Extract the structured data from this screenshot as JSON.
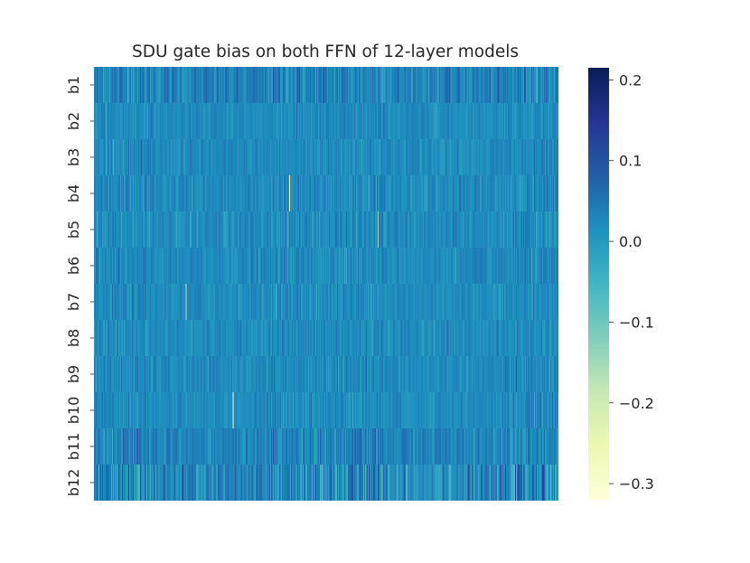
{
  "chart_data": {
    "type": "heatmap",
    "title": "SDU gate bias on both FFN of 12-layer models",
    "rows": [
      "b1",
      "b2",
      "b3",
      "b4",
      "b5",
      "b6",
      "b7",
      "b8",
      "b9",
      "b10",
      "b11",
      "b12"
    ],
    "columns_count": 512,
    "colormap": "YlGnBu",
    "value_range": [
      -0.32,
      0.215
    ],
    "typical_value": 0.02,
    "colorbar_ticks": [
      "0.2",
      "0.1",
      "0.0",
      "−0.1",
      "−0.2",
      "−0.3"
    ],
    "colorbar_tick_values": [
      0.2,
      0.1,
      0.0,
      -0.1,
      -0.2,
      -0.3
    ],
    "row_stats": [
      {
        "row": "b1",
        "mean": 0.03,
        "spread": 0.06
      },
      {
        "row": "b2",
        "mean": 0.02,
        "spread": 0.03
      },
      {
        "row": "b3",
        "mean": 0.02,
        "spread": 0.035
      },
      {
        "row": "b4",
        "mean": 0.02,
        "spread": 0.04
      },
      {
        "row": "b5",
        "mean": 0.02,
        "spread": 0.04
      },
      {
        "row": "b6",
        "mean": 0.02,
        "spread": 0.035
      },
      {
        "row": "b7",
        "mean": 0.02,
        "spread": 0.035
      },
      {
        "row": "b8",
        "mean": 0.02,
        "spread": 0.035
      },
      {
        "row": "b9",
        "mean": 0.02,
        "spread": 0.035
      },
      {
        "row": "b10",
        "mean": 0.02,
        "spread": 0.035
      },
      {
        "row": "b11",
        "mean": 0.03,
        "spread": 0.05
      },
      {
        "row": "b12",
        "mean": 0.02,
        "spread": 0.09
      }
    ],
    "notable_cells": [
      {
        "row": "b4",
        "column": 215,
        "value": -0.28
      },
      {
        "row": "b7",
        "column": 101,
        "value": -0.2
      },
      {
        "row": "b10",
        "column": 153,
        "value": -0.3
      },
      {
        "row": "b5",
        "column": 313,
        "value": -0.14
      }
    ]
  }
}
